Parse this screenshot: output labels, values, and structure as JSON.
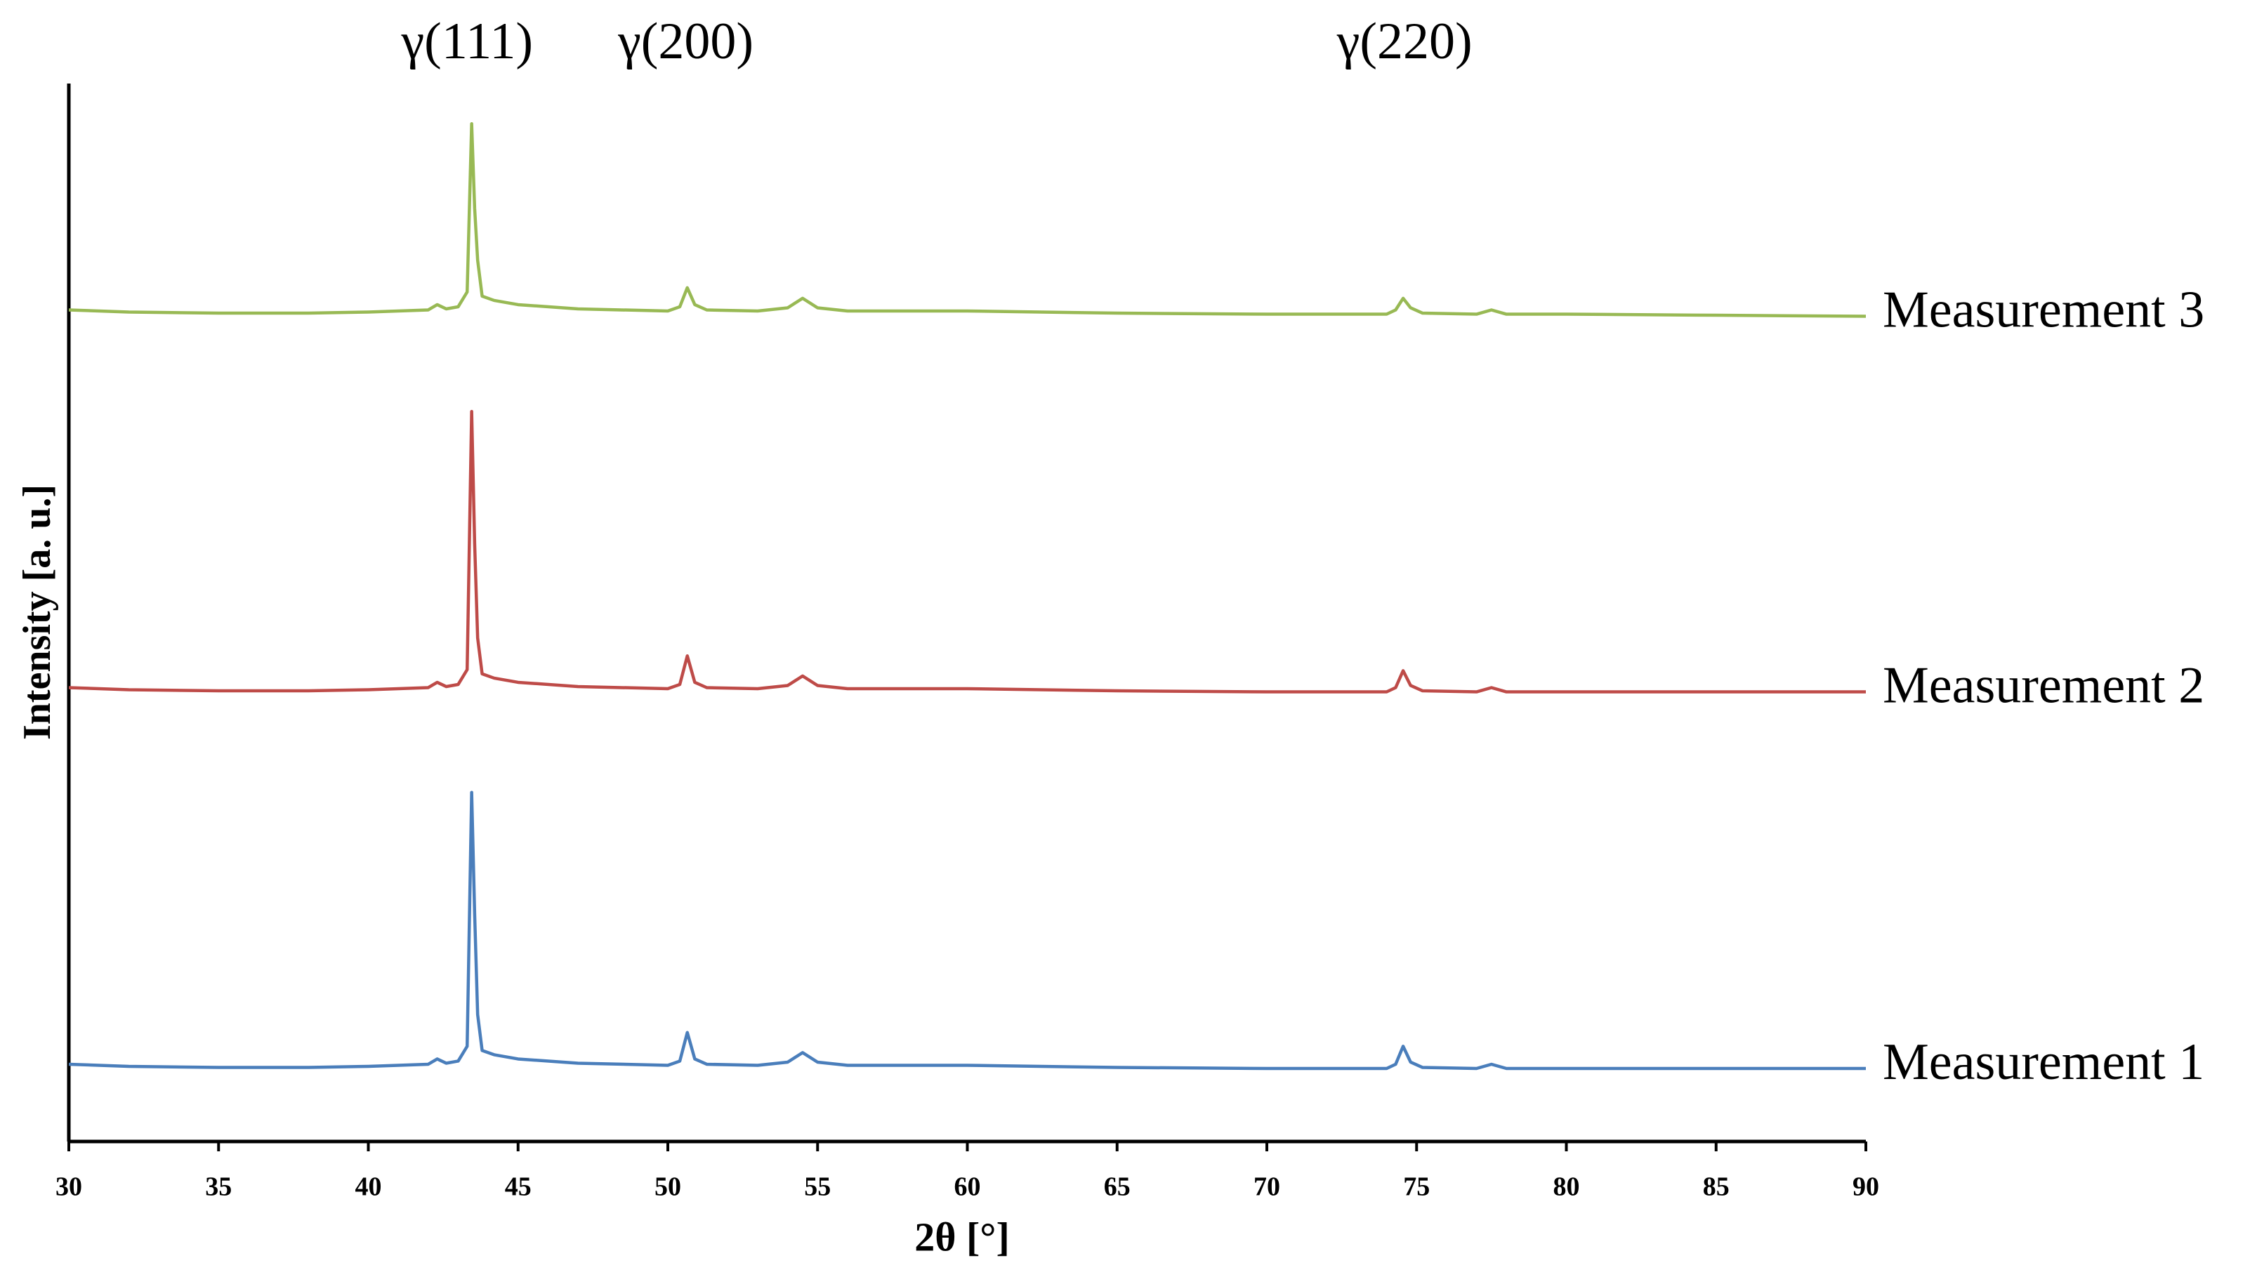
{
  "chart_data": {
    "type": "line",
    "xlabel": "2θ [°]",
    "ylabel": "Intensity [a. u.]",
    "x": [
      30,
      32,
      35,
      38,
      40,
      42,
      42.3,
      42.6,
      43,
      43.3,
      43.45,
      43.55,
      43.65,
      43.8,
      44.2,
      45,
      47,
      50,
      50.4,
      50.65,
      50.9,
      51.3,
      53,
      54,
      54.5,
      55,
      56,
      60,
      65,
      70,
      74,
      74.3,
      74.55,
      74.8,
      75.2,
      77,
      77.5,
      78,
      80,
      85,
      90
    ],
    "series": [
      {
        "name": "Measurement 1",
        "color": "#4a7ebb",
        "values": [
          7.3,
          7.1,
          7.0,
          7.0,
          7.1,
          7.3,
          7.8,
          7.4,
          7.6,
          9,
          33,
          21.5,
          12,
          8.6,
          8.2,
          7.8,
          7.4,
          7.2,
          7.6,
          10.3,
          7.8,
          7.3,
          7.2,
          7.5,
          8.4,
          7.5,
          7.2,
          7.2,
          7.0,
          6.9,
          6.9,
          7.3,
          9.0,
          7.5,
          7.0,
          6.9,
          7.3,
          6.9,
          6.9,
          6.9,
          6.9
        ]
      },
      {
        "name": "Measurement 2",
        "color": "#be4b48",
        "values": [
          42.9,
          42.7,
          42.6,
          42.6,
          42.7,
          42.9,
          43.4,
          43.0,
          43.2,
          44.6,
          69,
          56.5,
          47.6,
          44.2,
          43.8,
          43.4,
          43.0,
          42.8,
          43.2,
          45.9,
          43.4,
          42.9,
          42.8,
          43.1,
          44.0,
          43.1,
          42.8,
          42.8,
          42.6,
          42.5,
          42.5,
          42.9,
          44.5,
          43.1,
          42.6,
          42.5,
          42.9,
          42.5,
          42.5,
          42.5,
          42.5
        ]
      },
      {
        "name": "Measurement 3",
        "color": "#98b954",
        "values": [
          78.6,
          78.4,
          78.3,
          78.3,
          78.4,
          78.6,
          79.1,
          78.7,
          78.9,
          80.3,
          96.2,
          88.2,
          83.3,
          79.9,
          79.5,
          79.1,
          78.7,
          78.5,
          78.9,
          80.7,
          79.1,
          78.6,
          78.5,
          78.8,
          79.7,
          78.8,
          78.5,
          78.5,
          78.3,
          78.2,
          78.2,
          78.6,
          79.7,
          78.8,
          78.3,
          78.2,
          78.6,
          78.2,
          78.2,
          78.1,
          78.0
        ]
      }
    ],
    "annotations": [
      {
        "text": "γ(111)",
        "x": 43.3
      },
      {
        "text": "γ(200)",
        "x": 50.6
      },
      {
        "text": "γ(220)",
        "x": 74.6
      }
    ],
    "xlim": [
      30,
      90
    ],
    "xticks": [
      30,
      35,
      40,
      45,
      50,
      55,
      60,
      65,
      70,
      75,
      80,
      85,
      90
    ],
    "ylim": [
      0,
      100
    ]
  }
}
